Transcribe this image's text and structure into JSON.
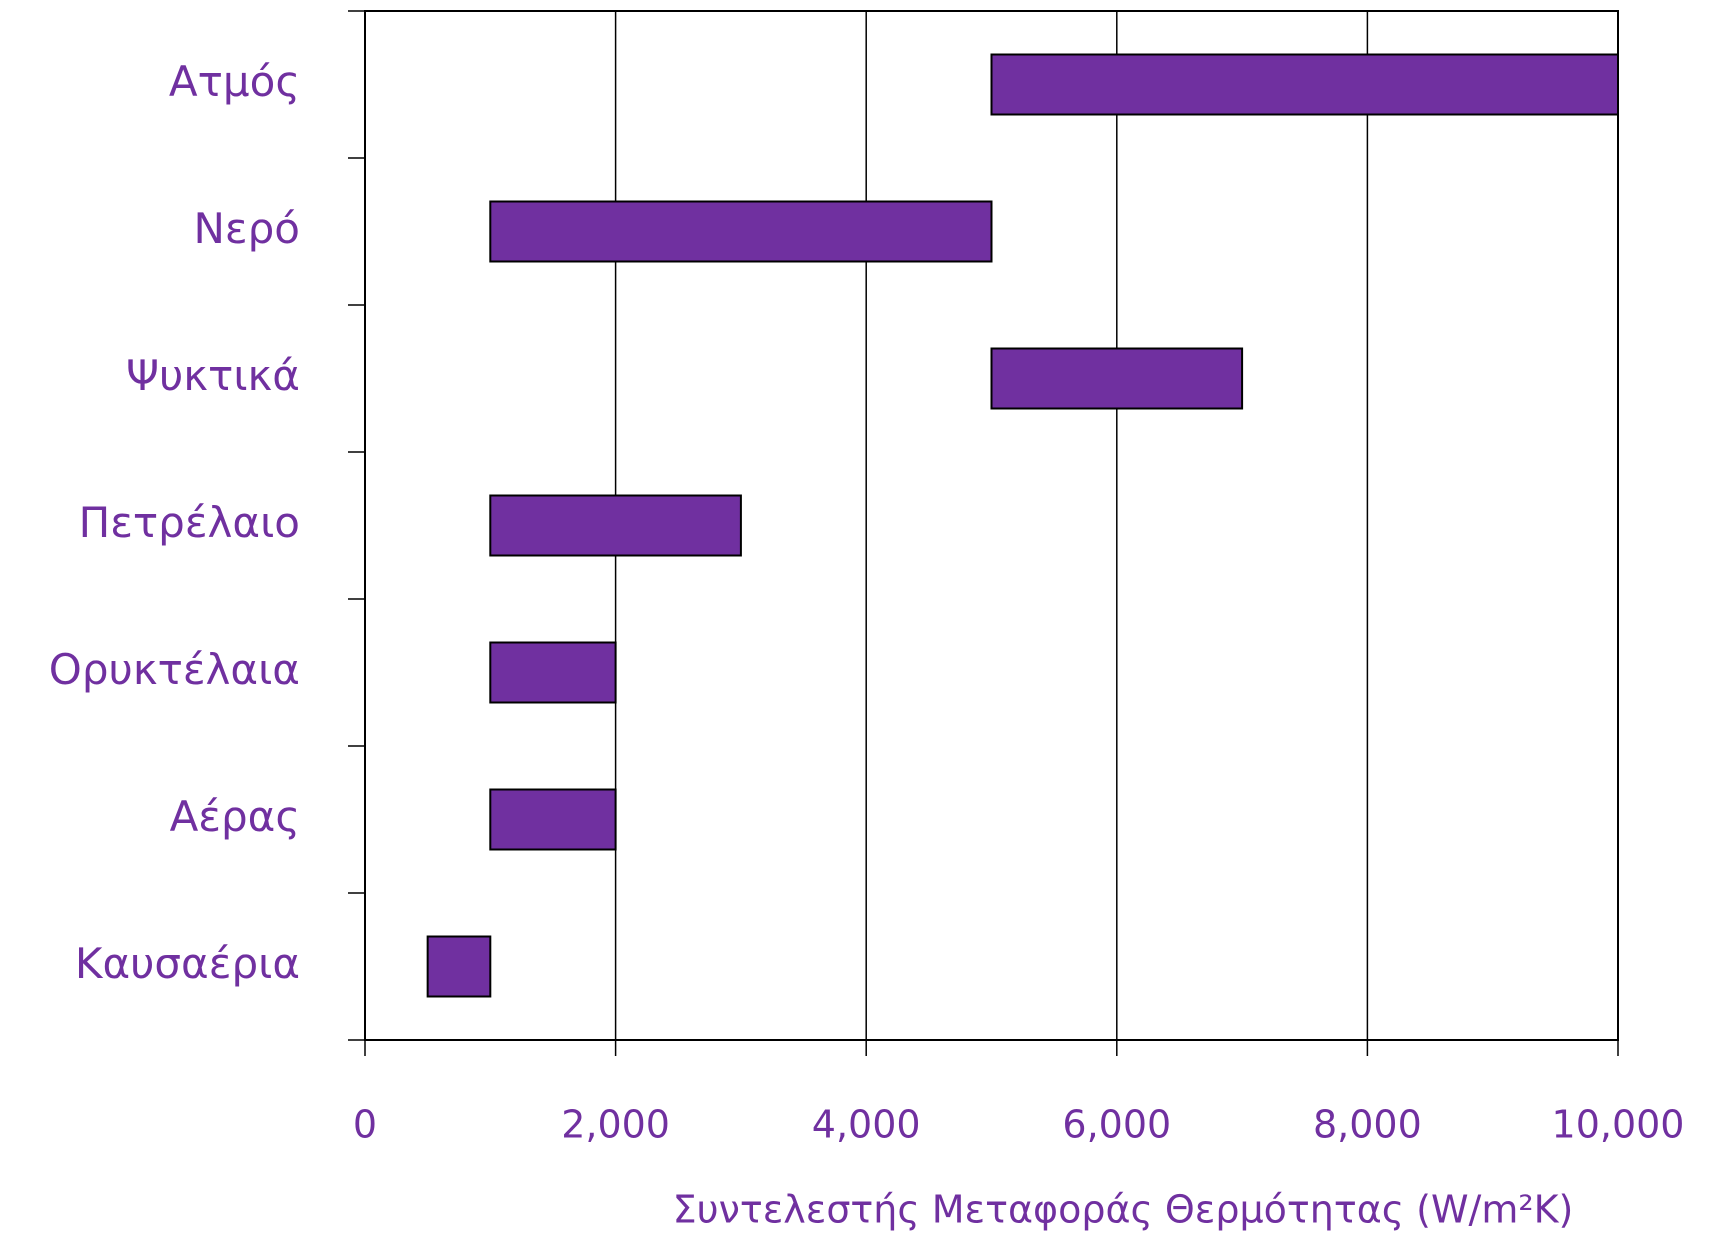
{
  "chart_data": {
    "type": "range-bar",
    "xlabel": "Συντελεστής Μεταφοράς Θερμότητας (W/m²K)",
    "categories": [
      "Ατμός",
      "Νερό",
      "Ψυκτικά",
      "Πετρέλαιο",
      "Ορυκτέλαια",
      "Αέρας",
      "Καυσαέρια"
    ],
    "starts": [
      5000,
      1000,
      5000,
      1000,
      1000,
      1000,
      500
    ],
    "ends": [
      10000,
      5000,
      7000,
      3000,
      2000,
      2000,
      1000
    ],
    "color": "#7030a0",
    "xlim": [
      0,
      10000
    ],
    "xticks": [
      0,
      {
        "value": 2000,
        "label": "2,000"
      },
      {
        "value": 4000,
        "label": "4,000"
      },
      {
        "value": 6000,
        "label": "6,000"
      },
      {
        "value": 8000,
        "label": "8,000"
      },
      {
        "value": 10000,
        "label": "10,000"
      }
    ],
    "grid": true
  }
}
